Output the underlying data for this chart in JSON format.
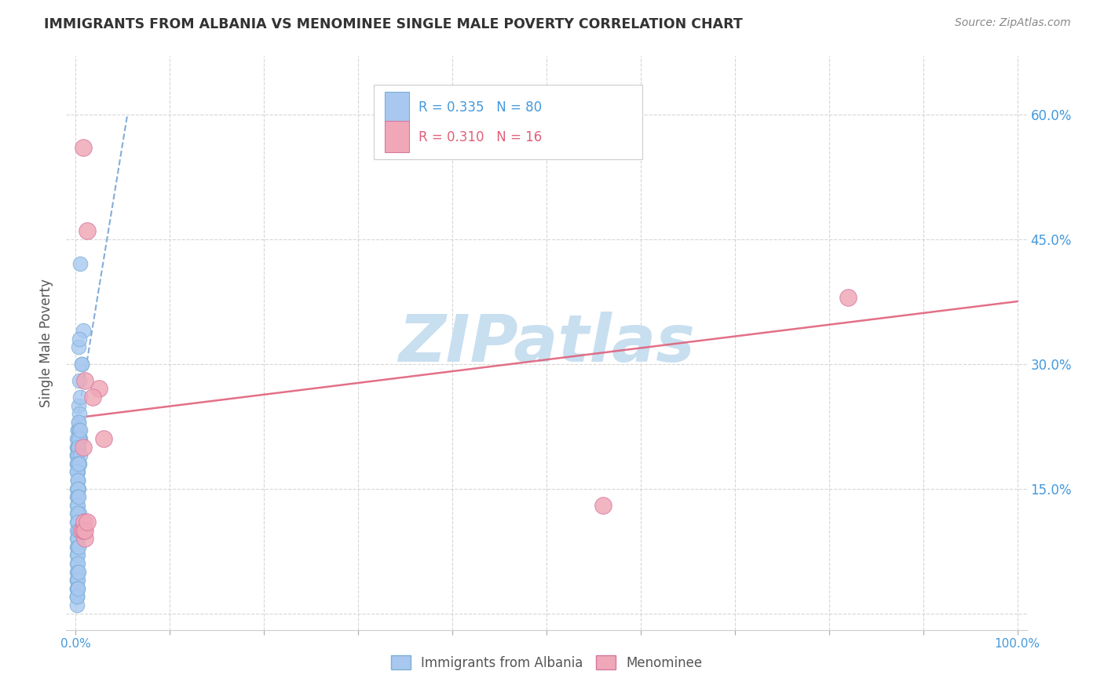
{
  "title": "IMMIGRANTS FROM ALBANIA VS MENOMINEE SINGLE MALE POVERTY CORRELATION CHART",
  "source": "Source: ZipAtlas.com",
  "ylabel": "Single Male Poverty",
  "R1": "0.335",
  "N1": "80",
  "R2": "0.310",
  "N2": "16",
  "albania_color": "#a8c8f0",
  "albania_edge": "#7bafd4",
  "menominee_color": "#f0a8b8",
  "menominee_edge": "#d478a0",
  "albania_line_color": "#6699cc",
  "menominee_line_color": "#e0607a",
  "watermark_color": "#c8dff0",
  "background_color": "#ffffff",
  "title_color": "#333333",
  "axis_label_color": "#555555",
  "tick_color_blue": "#4499dd",
  "legend1_label": "Immigrants from Albania",
  "legend2_label": "Menominee",
  "xlim": [
    -0.01,
    1.01
  ],
  "ylim": [
    -0.02,
    0.67
  ],
  "ytick_values": [
    0.0,
    0.15,
    0.3,
    0.45,
    0.6
  ],
  "xtick_values": [
    0.0,
    0.1,
    0.2,
    0.3,
    0.4,
    0.5,
    0.6,
    0.7,
    0.8,
    0.9,
    1.0
  ],
  "albania_x": [
    0.005,
    0.003,
    0.008,
    0.004,
    0.006,
    0.002,
    0.003,
    0.004,
    0.005,
    0.006,
    0.002,
    0.001,
    0.003,
    0.004,
    0.002,
    0.001,
    0.003,
    0.004,
    0.005,
    0.002,
    0.001,
    0.002,
    0.004,
    0.001,
    0.002,
    0.003,
    0.005,
    0.001,
    0.002,
    0.003,
    0.004,
    0.005,
    0.001,
    0.002,
    0.003,
    0.001,
    0.002,
    0.001,
    0.002,
    0.003,
    0.001,
    0.002,
    0.003,
    0.001,
    0.002,
    0.001,
    0.002,
    0.001,
    0.002,
    0.003,
    0.004,
    0.001,
    0.002,
    0.001,
    0.002,
    0.001,
    0.003,
    0.001,
    0.002,
    0.003,
    0.001,
    0.002,
    0.001,
    0.002,
    0.003,
    0.001,
    0.002,
    0.001,
    0.002,
    0.001,
    0.001,
    0.002,
    0.003,
    0.001,
    0.001,
    0.002,
    0.001,
    0.001,
    0.001,
    0.002
  ],
  "albania_y": [
    0.42,
    0.32,
    0.34,
    0.33,
    0.3,
    0.22,
    0.25,
    0.28,
    0.26,
    0.3,
    0.21,
    0.2,
    0.23,
    0.24,
    0.22,
    0.21,
    0.23,
    0.22,
    0.21,
    0.2,
    0.19,
    0.2,
    0.21,
    0.19,
    0.2,
    0.21,
    0.22,
    0.18,
    0.19,
    0.2,
    0.18,
    0.19,
    0.18,
    0.17,
    0.18,
    0.17,
    0.16,
    0.17,
    0.16,
    0.18,
    0.15,
    0.16,
    0.15,
    0.14,
    0.15,
    0.13,
    0.14,
    0.12,
    0.13,
    0.14,
    0.12,
    0.11,
    0.12,
    0.1,
    0.11,
    0.09,
    0.1,
    0.08,
    0.09,
    0.1,
    0.07,
    0.08,
    0.06,
    0.07,
    0.08,
    0.05,
    0.06,
    0.04,
    0.05,
    0.04,
    0.03,
    0.04,
    0.05,
    0.03,
    0.02,
    0.03,
    0.02,
    0.01,
    0.02,
    0.03
  ],
  "menominee_x": [
    0.008,
    0.012,
    0.025,
    0.03,
    0.01,
    0.018,
    0.008,
    0.56,
    0.82,
    0.008,
    0.006,
    0.01,
    0.008,
    0.009,
    0.01,
    0.012
  ],
  "menominee_y": [
    0.56,
    0.46,
    0.27,
    0.21,
    0.28,
    0.26,
    0.2,
    0.13,
    0.38,
    0.1,
    0.1,
    0.09,
    0.1,
    0.11,
    0.1,
    0.11
  ],
  "albania_trendline_x": [
    0.0,
    0.055
  ],
  "albania_trendline_y": [
    0.22,
    0.6
  ],
  "menominee_trendline_x": [
    0.0,
    1.0
  ],
  "menominee_trendline_y": [
    0.235,
    0.375
  ]
}
